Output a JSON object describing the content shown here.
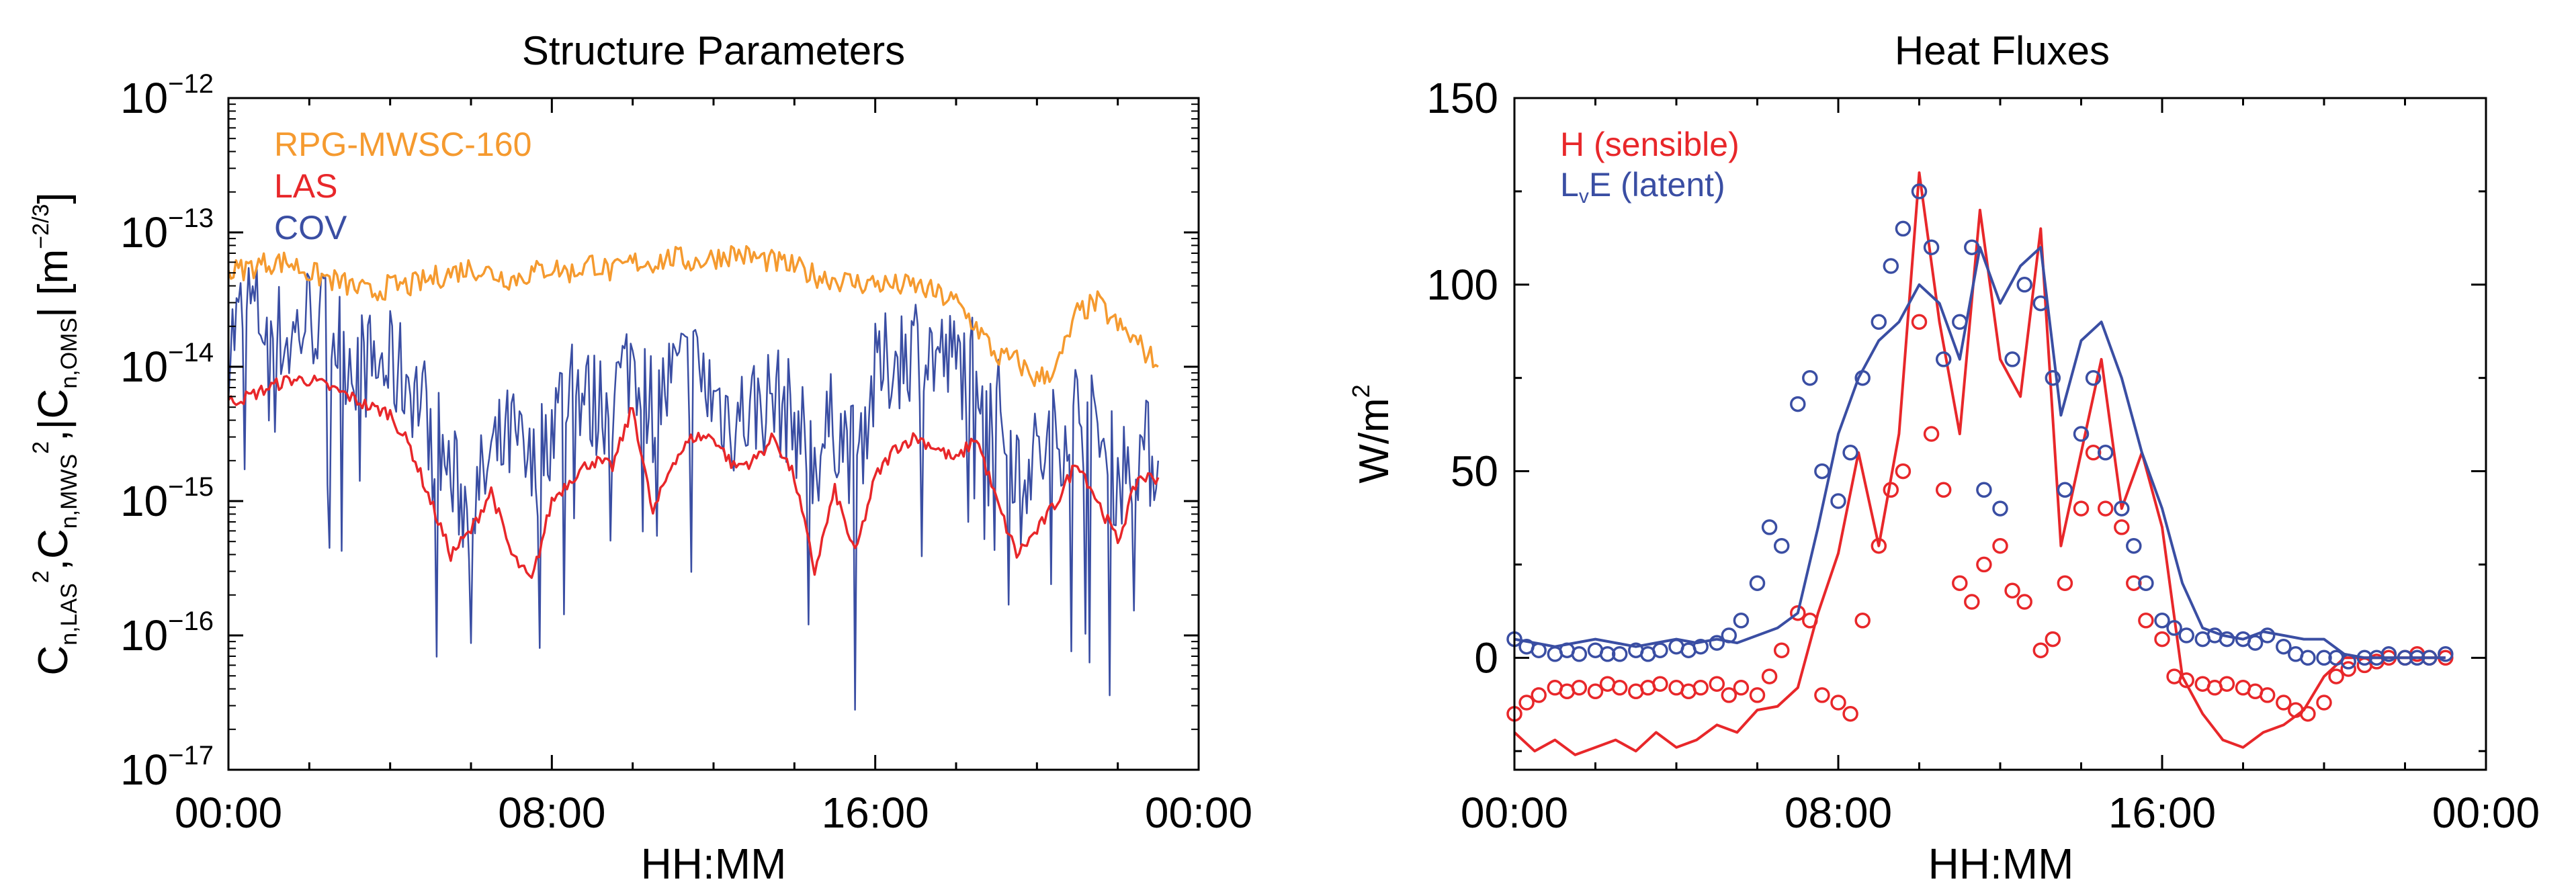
{
  "chart_data": [
    {
      "type": "line",
      "title": "Structure Parameters",
      "xlabel": "HH:MM",
      "ylabel": "C_{n,LAS}^2, C_{n,MWS}^2, |C_{n,OMS}| [m^{-2/3}]",
      "ylabel_parts": {
        "t1": "C",
        "s1": "n,LAS",
        "p1": "2",
        "t2": ",C",
        "s2": "n,MWS",
        "p2": "2",
        "t3": ",|C",
        "s3": "n,OMS",
        "t4": "| [m",
        "p3": "−2/3",
        "t5": "]"
      },
      "x_ticks": [
        "00:00",
        "08:00",
        "16:00",
        "00:00"
      ],
      "x_tick_hours": [
        0,
        8,
        16,
        24
      ],
      "xlim_hours": [
        0,
        24
      ],
      "yscale": "log",
      "ylim": [
        1e-17,
        1e-12
      ],
      "y_ticks": [
        {
          "value": 1e-12,
          "base": "10",
          "exp": "−12"
        },
        {
          "value": 1e-13,
          "base": "10",
          "exp": "−13"
        },
        {
          "value": 1e-14,
          "base": "10",
          "exp": "−14"
        },
        {
          "value": 1e-15,
          "base": "10",
          "exp": "−15"
        },
        {
          "value": 1e-16,
          "base": "10",
          "exp": "−16"
        },
        {
          "value": 1e-17,
          "base": "10",
          "exp": "−17"
        }
      ],
      "legend_position": "top-left",
      "series": [
        {
          "name": "RPG-MWSC-160",
          "color": "#f59a2f",
          "x_hours": [
            0,
            0.5,
            1,
            1.5,
            2,
            2.5,
            3,
            3.5,
            4,
            4.5,
            5,
            5.5,
            6,
            6.5,
            7,
            7.5,
            8,
            8.5,
            9,
            9.5,
            10,
            10.5,
            11,
            11.5,
            12,
            12.5,
            13,
            13.5,
            14,
            14.5,
            15,
            15.5,
            16,
            16.5,
            17,
            17.5,
            18,
            18.5,
            19,
            19.5,
            20,
            20.5,
            21,
            21.5,
            22,
            22.5,
            23
          ],
          "y": [
            5e-14,
            5.5e-14,
            6e-14,
            6e-14,
            5e-14,
            4.5e-14,
            4e-14,
            3.5e-14,
            4e-14,
            4e-14,
            4.5e-14,
            5e-14,
            5.5e-14,
            5e-14,
            4.5e-14,
            5e-14,
            5.5e-14,
            5e-14,
            6e-14,
            5e-14,
            6e-14,
            6e-14,
            6.5e-14,
            6e-14,
            6.5e-14,
            7e-14,
            6.5e-14,
            6e-14,
            5.5e-14,
            4.8e-14,
            4.5e-14,
            4.2e-14,
            4.2e-14,
            4e-14,
            4e-14,
            3.5e-14,
            3e-14,
            2e-14,
            1.2e-14,
            1.1e-14,
            8e-15,
            1e-14,
            2.5e-14,
            3e-14,
            2e-14,
            1.5e-14,
            1e-14
          ]
        },
        {
          "name": "LAS",
          "color": "#e8272a",
          "x_hours": [
            0,
            0.5,
            1,
            1.5,
            2,
            2.5,
            3,
            3.5,
            4,
            4.5,
            5,
            5.5,
            6,
            6.5,
            7,
            7.5,
            8,
            8.5,
            9,
            9.5,
            10,
            10.5,
            11,
            11.5,
            12,
            12.5,
            13,
            13.5,
            14,
            14.5,
            15,
            15.5,
            16,
            16.5,
            17,
            17.5,
            18,
            18.5,
            19,
            19.5,
            20,
            20.5,
            21,
            21.5,
            22,
            22.5,
            23
          ],
          "y": [
            5.5e-15,
            6e-15,
            7e-15,
            8e-15,
            8e-15,
            7e-15,
            6e-15,
            5e-15,
            4.5e-15,
            2.5e-15,
            1e-15,
            4e-16,
            6e-16,
            1.2e-15,
            4e-16,
            2.5e-16,
            1e-15,
            1.5e-15,
            2e-15,
            1.8e-15,
            5e-15,
            8e-16,
            2e-15,
            3e-15,
            3e-15,
            1.8e-15,
            2e-15,
            3e-15,
            1.5e-15,
            3e-16,
            1.2e-15,
            4e-16,
            1.5e-15,
            2.5e-15,
            3e-15,
            2.5e-15,
            2e-15,
            3e-15,
            1e-15,
            4e-16,
            6e-16,
            1e-15,
            2e-15,
            1e-15,
            5e-16,
            1.5e-15,
            1.5e-15
          ]
        },
        {
          "name": "COV",
          "color": "#3a4ea3",
          "x_hours": [
            0,
            0.5,
            1,
            1.5,
            2,
            2.5,
            3,
            3.5,
            4,
            4.5,
            5,
            5.5,
            6,
            6.5,
            7,
            7.5,
            8,
            8.5,
            9,
            9.5,
            10,
            10.5,
            11,
            11.5,
            12,
            12.5,
            13,
            13.5,
            14,
            14.5,
            15,
            15.5,
            16,
            16.5,
            17,
            17.5,
            18,
            18.5,
            19,
            19.5,
            20,
            20.5,
            21,
            21.5,
            22,
            22.5,
            23
          ],
          "y": [
            1.5e-14,
            3e-14,
            2e-14,
            1.5e-14,
            2.5e-14,
            2e-14,
            1.2e-14,
            1e-14,
            1e-14,
            8e-15,
            4e-15,
            1.5e-15,
            8e-16,
            2e-15,
            3e-15,
            1.5e-15,
            4e-15,
            8e-15,
            5e-15,
            6e-15,
            1.2e-14,
            5e-15,
            8e-15,
            1e-14,
            6e-15,
            4e-15,
            5e-15,
            6e-15,
            4e-15,
            2e-15,
            4e-15,
            2e-15,
            8e-15,
            1.2e-14,
            1.5e-14,
            1.2e-14,
            1e-14,
            1.2e-14,
            5e-15,
            2e-15,
            2e-15,
            3e-15,
            5e-15,
            3e-15,
            1.5e-15,
            2.5e-15,
            2e-15
          ]
        }
      ]
    },
    {
      "type": "line",
      "title": "Heat Fluxes",
      "xlabel": "HH:MM",
      "ylabel": "W/m²",
      "ylabel_parts": {
        "t1": "W/m",
        "p1": "2"
      },
      "x_ticks": [
        "00:00",
        "08:00",
        "16:00",
        "00:00"
      ],
      "x_tick_hours": [
        0,
        8,
        16,
        24
      ],
      "xlim_hours": [
        0,
        24
      ],
      "ylim": [
        -30,
        150
      ],
      "y_ticks": [
        {
          "value": 0,
          "label": "0"
        },
        {
          "value": 50,
          "label": "50"
        },
        {
          "value": 100,
          "label": "100"
        },
        {
          "value": 150,
          "label": "150"
        }
      ],
      "legend_position": "top-left",
      "legend_lve": {
        "t1": "L",
        "sub": "v",
        "t2": "E (latent)"
      },
      "series": [
        {
          "name": "H (sensible)",
          "color": "#e8272a",
          "line_x": [
            0,
            0.5,
            1,
            1.5,
            2,
            2.5,
            3,
            3.5,
            4,
            4.5,
            5,
            5.5,
            6,
            6.5,
            7,
            7.5,
            8,
            8.5,
            9,
            9.5,
            10,
            10.5,
            11,
            11.5,
            12,
            12.5,
            13,
            13.5,
            14,
            14.5,
            15,
            15.5,
            16,
            16.5,
            17,
            17.5,
            18,
            18.5,
            19,
            19.5,
            20,
            20.5,
            21,
            21.5,
            22,
            22.5,
            23
          ],
          "line_y": [
            -20,
            -25,
            -22,
            -26,
            -24,
            -22,
            -25,
            -20,
            -24,
            -22,
            -18,
            -20,
            -14,
            -13,
            -8,
            12,
            28,
            55,
            30,
            60,
            130,
            90,
            60,
            120,
            80,
            70,
            115,
            30,
            55,
            80,
            40,
            55,
            35,
            -5,
            -15,
            -22,
            -24,
            -20,
            -18,
            -14,
            -5,
            0,
            0,
            0,
            0,
            0,
            0
          ],
          "points_x": [
            0,
            0.3,
            0.6,
            1,
            1.3,
            1.6,
            2,
            2.3,
            2.6,
            3,
            3.3,
            3.6,
            4,
            4.3,
            4.6,
            5,
            5.3,
            5.6,
            6,
            6.3,
            6.6,
            7,
            7.3,
            7.6,
            8,
            8.3,
            8.6,
            9,
            9.3,
            9.6,
            10,
            10.3,
            10.6,
            11,
            11.3,
            11.6,
            12,
            12.3,
            12.6,
            13,
            13.3,
            13.6,
            14,
            14.3,
            14.6,
            15,
            15.3,
            15.6,
            16,
            16.3,
            16.6,
            17,
            17.3,
            17.6,
            18,
            18.3,
            18.6,
            19,
            19.3,
            19.6,
            20,
            20.3,
            20.6,
            21,
            21.3,
            21.6,
            22,
            22.3,
            22.6,
            23
          ],
          "points_y": [
            -15,
            -12,
            -10,
            -8,
            -9,
            -8,
            -9,
            -7,
            -8,
            -9,
            -8,
            -7,
            -8,
            -9,
            -8,
            -7,
            -10,
            -8,
            -10,
            -5,
            2,
            12,
            10,
            -10,
            -12,
            -15,
            10,
            30,
            45,
            50,
            90,
            60,
            45,
            20,
            15,
            25,
            30,
            18,
            15,
            2,
            5,
            20,
            40,
            55,
            40,
            35,
            20,
            10,
            5,
            -5,
            -6,
            -7,
            -8,
            -7,
            -8,
            -9,
            -10,
            -12,
            -14,
            -15,
            -12,
            -5,
            -3,
            -2,
            -1,
            0,
            0,
            1,
            0,
            0
          ]
        },
        {
          "name": "LvE (latent)",
          "color": "#3a4ea3",
          "line_x": [
            0,
            0.5,
            1,
            1.5,
            2,
            2.5,
            3,
            3.5,
            4,
            4.5,
            5,
            5.5,
            6,
            6.5,
            7,
            7.5,
            8,
            8.5,
            9,
            9.5,
            10,
            10.5,
            11,
            11.5,
            12,
            12.5,
            13,
            13.5,
            14,
            14.5,
            15,
            15.5,
            16,
            16.5,
            17,
            17.5,
            18,
            18.5,
            19,
            19.5,
            20,
            20.5,
            21,
            21.5,
            22,
            22.5,
            23
          ],
          "line_y": [
            5,
            4,
            3,
            4,
            5,
            4,
            3,
            4,
            5,
            4,
            5,
            4,
            6,
            8,
            12,
            35,
            60,
            75,
            85,
            90,
            100,
            95,
            80,
            110,
            95,
            105,
            110,
            65,
            85,
            90,
            75,
            55,
            40,
            20,
            8,
            6,
            5,
            7,
            6,
            5,
            5,
            1,
            0,
            0,
            0,
            0,
            0
          ],
          "points_x": [
            0,
            0.3,
            0.6,
            1,
            1.3,
            1.6,
            2,
            2.3,
            2.6,
            3,
            3.3,
            3.6,
            4,
            4.3,
            4.6,
            5,
            5.3,
            5.6,
            6,
            6.3,
            6.6,
            7,
            7.3,
            7.6,
            8,
            8.3,
            8.6,
            9,
            9.3,
            9.6,
            10,
            10.3,
            10.6,
            11,
            11.3,
            11.6,
            12,
            12.3,
            12.6,
            13,
            13.3,
            13.6,
            14,
            14.3,
            14.6,
            15,
            15.3,
            15.6,
            16,
            16.3,
            16.6,
            17,
            17.3,
            17.6,
            18,
            18.3,
            18.6,
            19,
            19.3,
            19.6,
            20,
            20.3,
            20.6,
            21,
            21.3,
            21.6,
            22,
            22.3,
            22.6,
            23
          ],
          "points_y": [
            5,
            3,
            2,
            1,
            2,
            1,
            2,
            1,
            1,
            2,
            1,
            2,
            3,
            2,
            3,
            4,
            6,
            10,
            20,
            35,
            30,
            68,
            75,
            50,
            42,
            55,
            75,
            90,
            105,
            115,
            125,
            110,
            80,
            90,
            110,
            45,
            40,
            80,
            100,
            95,
            75,
            45,
            60,
            75,
            55,
            40,
            30,
            20,
            10,
            8,
            6,
            5,
            6,
            5,
            5,
            4,
            6,
            3,
            1,
            0,
            0,
            0,
            -1,
            0,
            0,
            1,
            0,
            0,
            0,
            1
          ]
        }
      ]
    }
  ]
}
